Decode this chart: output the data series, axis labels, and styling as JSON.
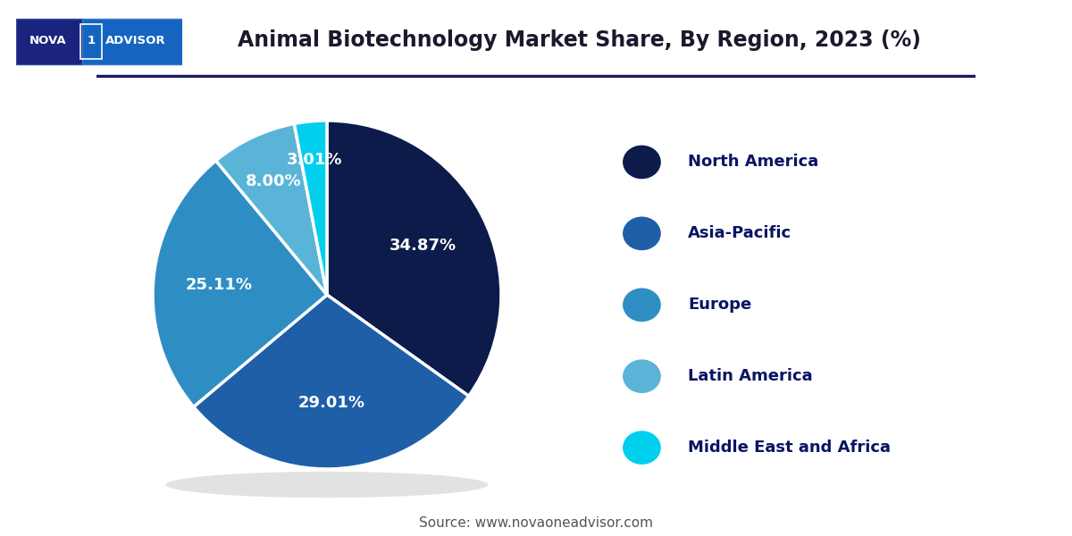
{
  "title": "Animal Biotechnology Market Share, By Region, 2023 (%)",
  "title_fontsize": 17,
  "title_color": "#1a1a2e",
  "slices": [
    {
      "label": "North America",
      "value": 34.87,
      "color": "#0d1b4b",
      "autopct": "34.87%"
    },
    {
      "label": "Asia-Pacific",
      "value": 29.01,
      "color": "#1e5fa8",
      "autopct": "29.01%"
    },
    {
      "label": "Europe",
      "value": 25.11,
      "color": "#2e8ec4",
      "autopct": "25.11%"
    },
    {
      "label": "Latin America",
      "value": 8.0,
      "color": "#5ab4d8",
      "autopct": "8.00%"
    },
    {
      "label": "Middle East and Africa",
      "value": 3.01,
      "color": "#00cfee",
      "autopct": "3.01%"
    }
  ],
  "startangle": 90,
  "source_text": "Source: www.novaoneadvisor.com",
  "source_fontsize": 11,
  "legend_fontsize": 13,
  "legend_text_color": "#0a1464",
  "label_fontsize": 13,
  "label_color": "#ffffff",
  "background_color": "#ffffff",
  "separator_line_color": "#1a1a5e",
  "logo_bg_dark": "#1a237e",
  "logo_bg_light": "#1565c0"
}
